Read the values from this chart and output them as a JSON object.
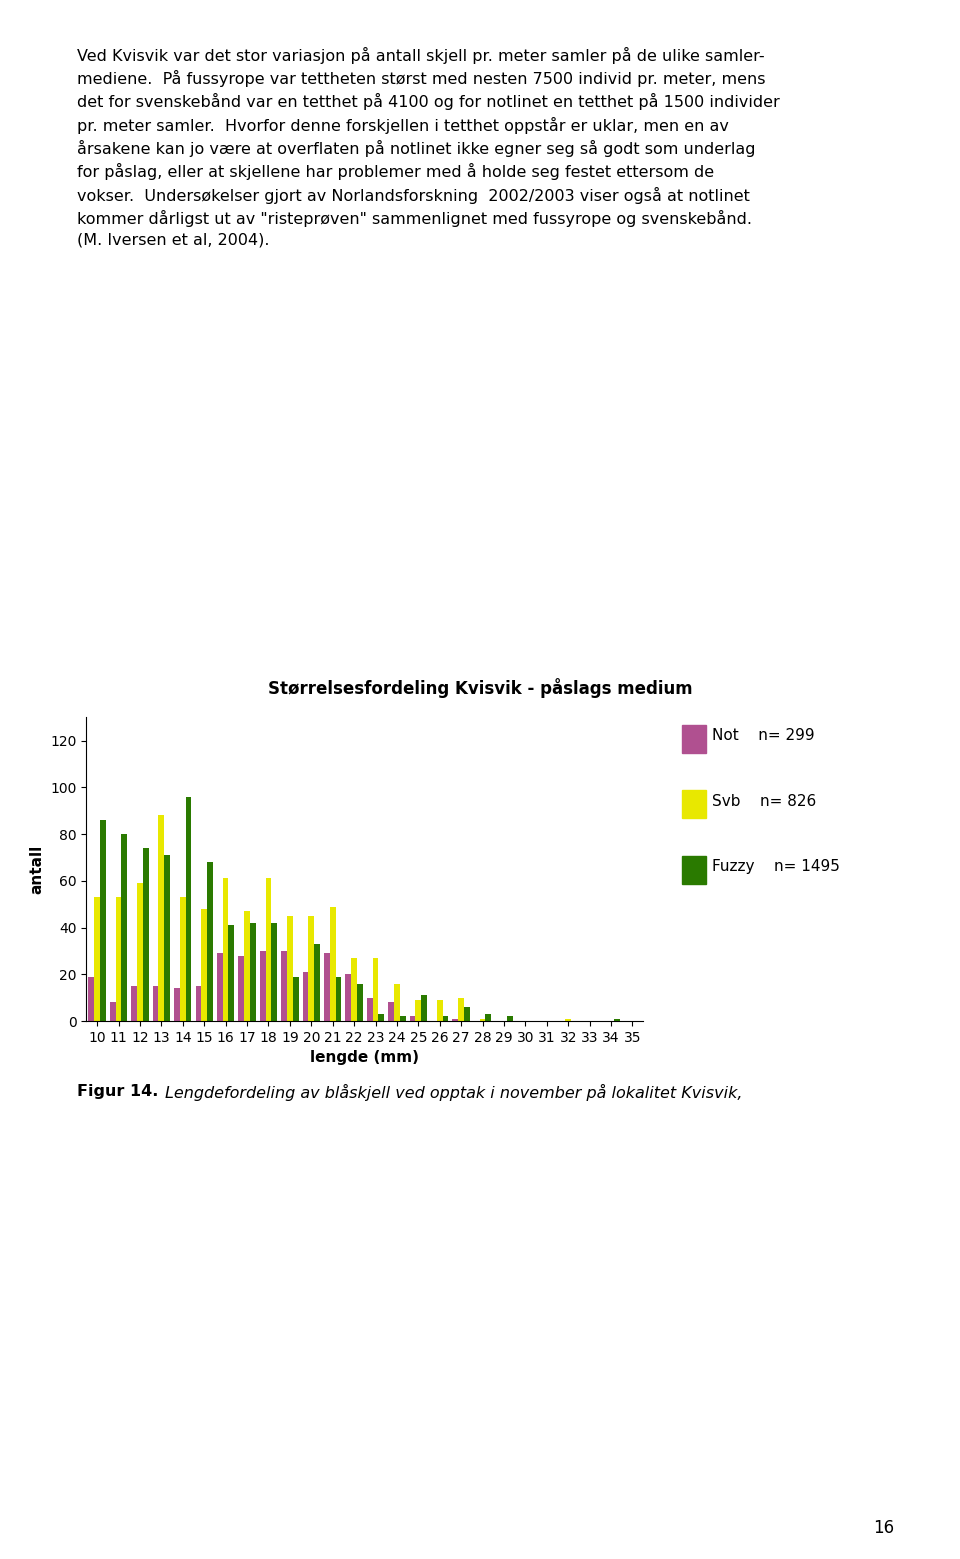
{
  "title": "Størrelsesfordeling Kvisvik - påslags medium",
  "xlabel": "lengde (mm)",
  "ylabel": "antall",
  "categories": [
    10,
    11,
    12,
    13,
    14,
    15,
    16,
    17,
    18,
    19,
    20,
    21,
    22,
    23,
    24,
    25,
    26,
    27,
    28,
    29,
    30,
    31,
    32,
    33,
    34,
    35
  ],
  "not_values": [
    19,
    8,
    15,
    15,
    14,
    15,
    29,
    28,
    30,
    30,
    21,
    29,
    20,
    10,
    8,
    2,
    0,
    1,
    0,
    0,
    0,
    0,
    0,
    0,
    0,
    0
  ],
  "svb_values": [
    53,
    53,
    59,
    88,
    53,
    48,
    61,
    47,
    61,
    45,
    45,
    49,
    27,
    27,
    16,
    9,
    9,
    10,
    1,
    0,
    0,
    0,
    1,
    0,
    0,
    0
  ],
  "fuzzy_values": [
    86,
    80,
    74,
    71,
    96,
    68,
    41,
    42,
    42,
    19,
    33,
    19,
    16,
    3,
    2,
    11,
    2,
    6,
    3,
    2,
    0,
    0,
    0,
    0,
    1,
    0
  ],
  "not_color": "#b05090",
  "svb_color": "#e8e800",
  "fuzzy_color": "#2a7a00",
  "not_label": "Not",
  "svb_label": "Svb",
  "fuzzy_label": "Fuzzy",
  "not_n": "n= 299",
  "svb_n": "n= 826",
  "fuzzy_n": "n= 1495",
  "ylim": [
    0,
    130
  ],
  "yticks": [
    0,
    20,
    40,
    60,
    80,
    100,
    120
  ],
  "background_color": "#ffffff",
  "title_fontsize": 12,
  "axis_fontsize": 11,
  "tick_fontsize": 10,
  "legend_fontsize": 11,
  "bar_width": 0.27,
  "figsize": [
    9.6,
    15.59
  ],
  "dpi": 100,
  "para1": "Ved Kvisvik var det stor variasjon på antall skjell pr. meter samler på de ulike samler-\nmediene.  På fussyrope var tettheten størst med nesten 7500 individ pr. meter, mens\ndet for svenskebånd var en tetthet på 4100 og for notlinet en tetthet på 1500 individer\npr. meter samler.  Hvorfor denne forskjellen i tetthet oppstår er uklar, men en av\nårsakene kan jo være at overflaten på notlinet ikke egner seg så godt som underlag\nfor påslag, eller at skjellene har problemer med å holde seg festet ettersom de\nvokser.  Undersøkelser gjort av Norlandsforskning  2002/2003 viser også at notlinet\nkommer dårligst ut av \"risteprøven\" sammenlignet med fussyrope og svenskebånd.\n(M. Iversen et al, 2004).",
  "caption_bold": "Figur 14.",
  "caption_italic_line1": "Lengdefordeling av blåskjell ved opptak i november på lokalitet Kvisvik,",
  "page_number": "16"
}
